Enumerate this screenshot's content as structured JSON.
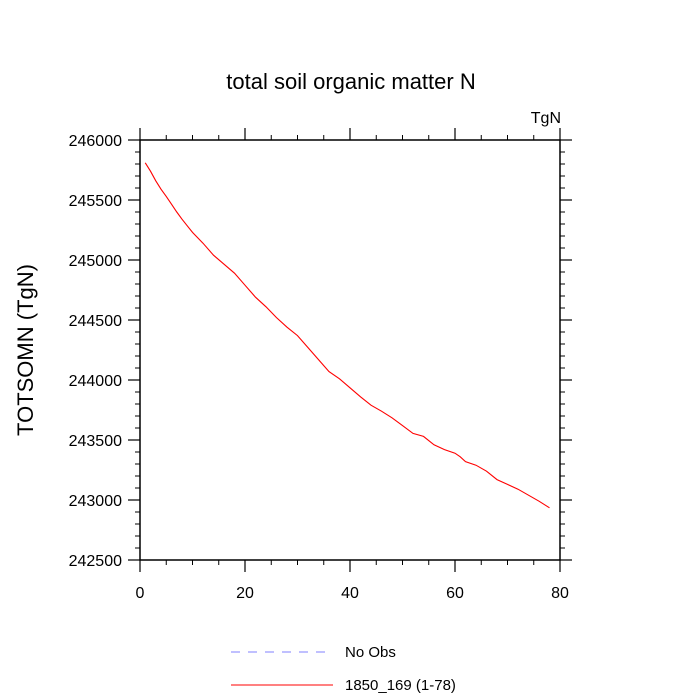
{
  "chart_data": {
    "type": "line",
    "title": "total soil organic matter N",
    "units_label": "TgN",
    "ylabel": "TOTSOMN  (TgN)",
    "xlabel": "",
    "xlim": [
      0,
      80
    ],
    "ylim": [
      242500,
      246000
    ],
    "x_ticks": [
      0,
      20,
      40,
      60,
      80
    ],
    "y_ticks": [
      242500,
      243000,
      243500,
      244000,
      244500,
      245000,
      245500,
      246000
    ],
    "grid": false,
    "legend_position": "bottom",
    "series": [
      {
        "name": "No Obs",
        "color": "#8080ff",
        "dash": "dashed",
        "values": []
      },
      {
        "name": "1850_169 (1-78)",
        "color": "#ff0000",
        "dash": "solid",
        "x": [
          1,
          2,
          3,
          4,
          5,
          6,
          7,
          8,
          9,
          10,
          12,
          14,
          16,
          18,
          20,
          22,
          24,
          26,
          28,
          30,
          32,
          34,
          36,
          38,
          40,
          42,
          44,
          46,
          48,
          50,
          52,
          54,
          56,
          58,
          60,
          61,
          62,
          64,
          66,
          68,
          70,
          72,
          74,
          76,
          78
        ],
        "values": [
          245810,
          245740,
          245660,
          245590,
          245530,
          245465,
          245400,
          245340,
          245285,
          245230,
          245140,
          245040,
          244965,
          244890,
          244790,
          244690,
          244610,
          244520,
          244440,
          244370,
          244270,
          244170,
          244070,
          244010,
          243935,
          243860,
          243790,
          243740,
          243685,
          243620,
          243555,
          243530,
          243460,
          243420,
          243390,
          243360,
          243320,
          243290,
          243240,
          243170,
          243130,
          243090,
          243040,
          242990,
          242935
        ]
      }
    ]
  }
}
